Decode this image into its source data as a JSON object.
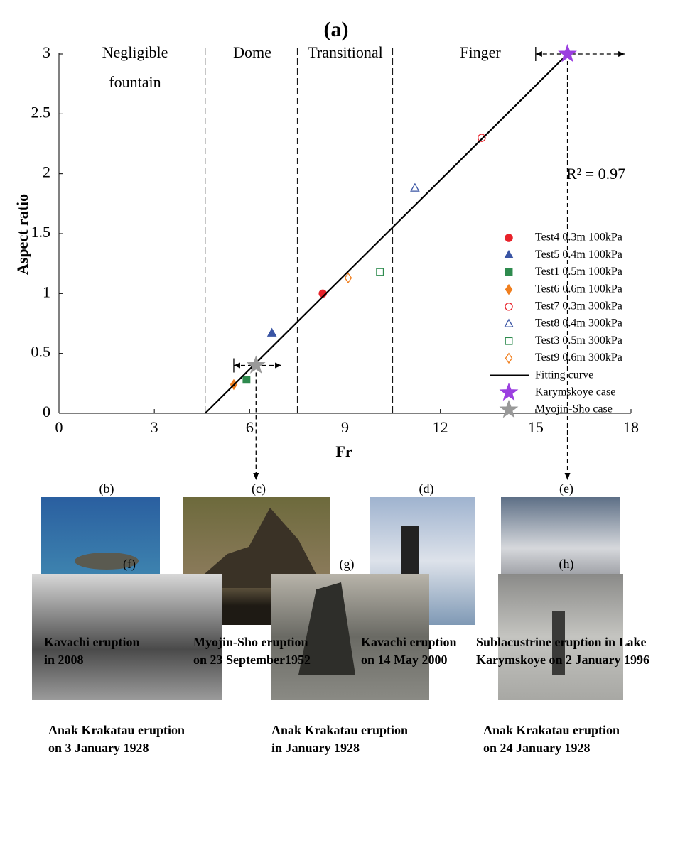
{
  "chart_data": {
    "type": "scatter",
    "title": "(a)",
    "xlabel": "Fr",
    "ylabel": "Aspect ratio",
    "xlim": [
      0,
      18
    ],
    "ylim": [
      0,
      3
    ],
    "xticks": [
      0,
      3,
      6,
      9,
      12,
      15,
      18
    ],
    "yticks": [
      0,
      0.5,
      1,
      1.5,
      2,
      2.5,
      3
    ],
    "region_boundaries": [
      4.6,
      7.5,
      10.5
    ],
    "regions": [
      [
        "Negligible",
        "fountain"
      ],
      [
        "Dome"
      ],
      [
        "Transitional"
      ],
      [
        "Finger"
      ]
    ],
    "annotation": "R² = 0.97",
    "series": [
      {
        "name": "Test4 0.3m 100kPa",
        "color": "#e8222a",
        "marker": "circle",
        "filled": true,
        "x": [
          8.3
        ],
        "y": [
          1.0
        ]
      },
      {
        "name": "Test5 0.4m 100kPa",
        "color": "#3a55a4",
        "marker": "triangle",
        "filled": true,
        "x": [
          6.7
        ],
        "y": [
          0.67
        ]
      },
      {
        "name": "Test1 0.5m 100kPa",
        "color": "#2e8b4e",
        "marker": "square",
        "filled": true,
        "x": [
          5.9
        ],
        "y": [
          0.28
        ]
      },
      {
        "name": "Test6 0.6m 100kPa",
        "color": "#f07f1f",
        "marker": "diamond",
        "filled": true,
        "x": [
          5.5
        ],
        "y": [
          0.24
        ]
      },
      {
        "name": "Test7 0.3m 300kPa",
        "color": "#e8222a",
        "marker": "circle",
        "filled": false,
        "x": [
          13.3
        ],
        "y": [
          2.3
        ]
      },
      {
        "name": "Test8 0.4m 300kPa",
        "color": "#3a55a4",
        "marker": "triangle",
        "filled": false,
        "x": [
          11.2
        ],
        "y": [
          1.88
        ]
      },
      {
        "name": "Test3 0.5m 300kPa",
        "color": "#2e8b4e",
        "marker": "square",
        "filled": false,
        "x": [
          10.1
        ],
        "y": [
          1.18
        ]
      },
      {
        "name": "Test9 0.6m 300kPa",
        "color": "#f07f1f",
        "marker": "diamond",
        "filled": false,
        "x": [
          9.1
        ],
        "y": [
          1.13
        ]
      },
      {
        "name": "Fitting curve",
        "color": "#000000",
        "marker": "line",
        "x": [
          4.6,
          16.0
        ],
        "y": [
          0,
          3
        ]
      },
      {
        "name": "Karymskoye case",
        "color": "#9b3fe0",
        "marker": "star",
        "filled": true,
        "x": [
          16.0
        ],
        "y": [
          3.0
        ],
        "xmin": [
          15.0
        ],
        "xmax": [
          17.8
        ]
      },
      {
        "name": "Myojin-Sho case",
        "color": "#999999",
        "marker": "star",
        "filled": true,
        "x": [
          6.2
        ],
        "y": [
          0.4
        ],
        "xmin": [
          5.5
        ],
        "xmax": [
          7.0
        ]
      }
    ]
  },
  "panels": [
    {
      "label": "(b)",
      "caption": [
        "Kavachi eruption",
        "in 2008"
      ]
    },
    {
      "label": "(c)",
      "caption": [
        "Myojin-Sho eruption",
        "on 23 September1952"
      ]
    },
    {
      "label": "(d)",
      "caption": [
        "Kavachi eruption",
        "on 14 May 2000"
      ]
    },
    {
      "label": "(e)",
      "caption": [
        "Sublacustrine eruption in Lake",
        "Karymskoye on 2 January 1996"
      ]
    },
    {
      "label": "(f)",
      "caption": [
        "Anak Krakatau eruption",
        "on 3 January 1928"
      ]
    },
    {
      "label": "(g)",
      "caption": [
        "Anak Krakatau eruption",
        "in January 1928"
      ]
    },
    {
      "label": "(h)",
      "caption": [
        "Anak Krakatau eruption",
        "on 24 January 1928"
      ]
    }
  ]
}
